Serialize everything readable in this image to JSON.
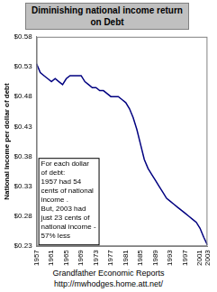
{
  "chart_data": {
    "type": "line",
    "title": "Diminishing national income return on Debt",
    "y_label": "National Income per dollar of debt",
    "annotation": [
      "For each dollar",
      "of debt:",
      "1957 had 54",
      "cents of national",
      "income .",
      "But, 2003 had",
      "just 23 cents of",
      "national income -",
      "57% less"
    ],
    "source": [
      "Grandfather Economic Reports",
      "http://mwhodges.home.att.net/"
    ],
    "x": [
      1957,
      1958,
      1959,
      1960,
      1961,
      1962,
      1963,
      1964,
      1965,
      1966,
      1967,
      1968,
      1969,
      1970,
      1971,
      1972,
      1973,
      1974,
      1975,
      1976,
      1977,
      1978,
      1979,
      1980,
      1981,
      1982,
      1983,
      1984,
      1985,
      1986,
      1987,
      1988,
      1989,
      1990,
      1991,
      1992,
      1993,
      1994,
      1995,
      1996,
      1997,
      1998,
      1999,
      2000,
      2001,
      2002,
      2003
    ],
    "values": [
      0.535,
      0.52,
      0.515,
      0.51,
      0.505,
      0.51,
      0.505,
      0.5,
      0.51,
      0.515,
      0.515,
      0.515,
      0.515,
      0.505,
      0.5,
      0.495,
      0.495,
      0.49,
      0.49,
      0.485,
      0.48,
      0.48,
      0.48,
      0.475,
      0.47,
      0.46,
      0.445,
      0.425,
      0.4,
      0.375,
      0.36,
      0.35,
      0.34,
      0.33,
      0.32,
      0.31,
      0.305,
      0.3,
      0.295,
      0.29,
      0.285,
      0.28,
      0.275,
      0.27,
      0.26,
      0.245,
      0.232
    ],
    "color": "#000080",
    "xlim": [
      1957,
      2003
    ],
    "xticks": [
      1957,
      1961,
      1965,
      1969,
      1973,
      1977,
      1981,
      1985,
      1989,
      1993,
      1997,
      2001,
      2003
    ],
    "ylim": [
      0.23,
      0.58
    ],
    "yticks": [
      {
        "value": 0.23,
        "label": "$0.23"
      },
      {
        "value": 0.28,
        "label": "$0.28"
      },
      {
        "value": 0.33,
        "label": "$0.33"
      },
      {
        "value": 0.38,
        "label": "$0.38"
      },
      {
        "value": 0.43,
        "label": "$0.43"
      },
      {
        "value": 0.48,
        "label": "$0.48"
      },
      {
        "value": 0.53,
        "label": "$0.53"
      },
      {
        "value": 0.58,
        "label": "$0.58"
      }
    ],
    "grid": false
  }
}
